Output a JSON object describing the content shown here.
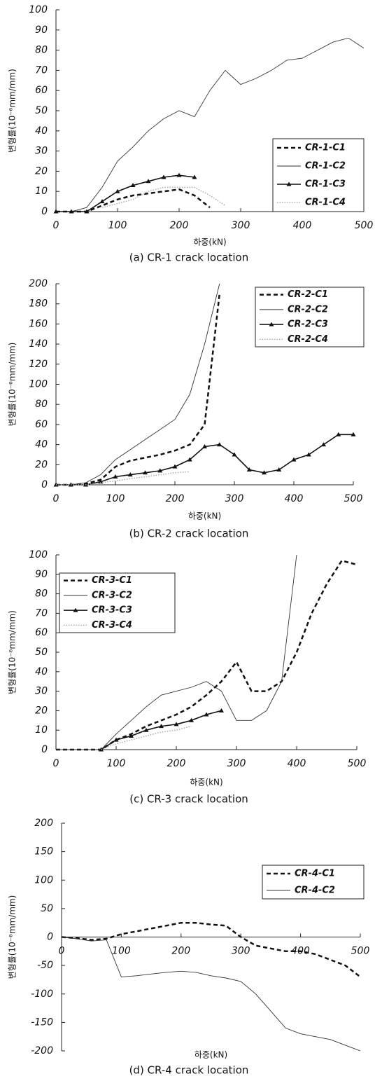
{
  "chart_data": [
    {
      "type": "line",
      "caption": "(a) CR-1 crack location",
      "xlabel": "하중(kN)",
      "ylabel": "변형률(10⁻⁶mm/mm)",
      "x": [
        0,
        25,
        50,
        75,
        100,
        125,
        150,
        175,
        200,
        225,
        250,
        275,
        300,
        325,
        350,
        375,
        400,
        425,
        450,
        475,
        500
      ],
      "xlim": [
        0,
        500
      ],
      "xticks": [
        0,
        100,
        200,
        300,
        400,
        500
      ],
      "ylim": [
        0,
        100
      ],
      "yticks": [
        0,
        10,
        20,
        30,
        40,
        50,
        60,
        70,
        80,
        90,
        100
      ],
      "legend": "lower right",
      "series": [
        {
          "name": "CR-1-C1",
          "color": "#111111",
          "style": "dashed",
          "values": [
            0,
            0,
            0,
            3,
            6,
            8,
            9,
            10,
            11,
            8,
            2,
            null,
            null,
            null,
            null,
            null,
            null,
            null,
            null,
            null,
            null
          ]
        },
        {
          "name": "CR-1-C2",
          "color": "#333333",
          "style": "thin",
          "values": [
            0,
            0,
            2,
            12,
            25,
            32,
            40,
            46,
            50,
            47,
            60,
            70,
            63,
            66,
            70,
            75,
            76,
            80,
            84,
            86,
            81
          ]
        },
        {
          "name": "CR-1-C3",
          "color": "#111111",
          "style": "triangle",
          "values": [
            0,
            0,
            0,
            5,
            10,
            13,
            15,
            17,
            18,
            17,
            null,
            null,
            null,
            null,
            null,
            null,
            null,
            null,
            null,
            null,
            null
          ]
        },
        {
          "name": "CR-1-C4",
          "color": "#aaaaaa",
          "style": "dotted",
          "values": [
            null,
            null,
            null,
            2,
            4,
            6,
            10,
            12,
            12,
            12,
            8,
            3,
            null,
            null,
            null,
            null,
            null,
            null,
            null,
            null,
            null
          ]
        }
      ]
    },
    {
      "type": "line",
      "caption": "(b) CR-2 crack location",
      "xlabel": "하중(kN)",
      "ylabel": "변형률(10⁻⁶mm/mm)",
      "x": [
        0,
        25,
        50,
        75,
        100,
        125,
        150,
        175,
        200,
        225,
        250,
        275,
        300,
        325,
        350,
        375,
        400,
        425,
        450,
        475,
        500
      ],
      "xlim": [
        0,
        500
      ],
      "xticks": [
        0,
        100,
        200,
        300,
        400,
        500
      ],
      "ylim": [
        0,
        200
      ],
      "yticks": [
        0,
        20,
        40,
        60,
        80,
        100,
        120,
        140,
        160,
        180,
        200
      ],
      "legend": "upper right",
      "series": [
        {
          "name": "CR-2-C1",
          "color": "#111111",
          "style": "dashed",
          "values": [
            0,
            0,
            1,
            5,
            18,
            24,
            27,
            30,
            34,
            40,
            60,
            190,
            null,
            null,
            null,
            null,
            null,
            null,
            null,
            null,
            null
          ]
        },
        {
          "name": "CR-2-C2",
          "color": "#333333",
          "style": "thin",
          "values": [
            0,
            0,
            2,
            10,
            25,
            35,
            45,
            55,
            65,
            90,
            140,
            200,
            null,
            null,
            null,
            null,
            null,
            null,
            null,
            null,
            null
          ]
        },
        {
          "name": "CR-2-C3",
          "color": "#111111",
          "style": "triangle",
          "values": [
            0,
            0,
            0,
            3,
            8,
            10,
            12,
            14,
            18,
            25,
            38,
            40,
            30,
            15,
            12,
            15,
            25,
            30,
            40,
            50,
            50
          ]
        },
        {
          "name": "CR-2-C4",
          "color": "#aaaaaa",
          "style": "dotted",
          "values": [
            0,
            0,
            0,
            2,
            4,
            6,
            8,
            10,
            12,
            13,
            null,
            null,
            null,
            null,
            null,
            null,
            null,
            null,
            null,
            null,
            null
          ]
        }
      ]
    },
    {
      "type": "line",
      "caption": "(c) CR-3 crack location",
      "xlabel": "하중(kN)",
      "ylabel": "변형률(10⁻⁶mm/mm)",
      "x": [
        0,
        25,
        50,
        75,
        100,
        125,
        150,
        175,
        200,
        225,
        250,
        275,
        300,
        325,
        350,
        375,
        400,
        425,
        450,
        475,
        500
      ],
      "xlim": [
        0,
        500
      ],
      "xticks": [
        0,
        100,
        200,
        300,
        400,
        500
      ],
      "ylim": [
        0,
        100
      ],
      "yticks": [
        0,
        10,
        20,
        30,
        40,
        50,
        60,
        70,
        80,
        90,
        100
      ],
      "legend": "upper left",
      "series": [
        {
          "name": "CR-3-C1",
          "color": "#111111",
          "style": "dashed",
          "values": [
            0,
            0,
            0,
            0,
            5,
            8,
            12,
            15,
            18,
            22,
            28,
            35,
            45,
            30,
            30,
            35,
            50,
            70,
            85,
            97,
            95
          ]
        },
        {
          "name": "CR-3-C2",
          "color": "#333333",
          "style": "thin",
          "values": [
            0,
            0,
            0,
            0,
            8,
            15,
            22,
            28,
            30,
            32,
            35,
            30,
            15,
            15,
            20,
            35,
            100,
            null,
            null,
            null,
            null
          ]
        },
        {
          "name": "CR-3-C3",
          "color": "#111111",
          "style": "triangle",
          "values": [
            null,
            null,
            null,
            0,
            5,
            7,
            10,
            12,
            13,
            15,
            18,
            20,
            null,
            null,
            null,
            null,
            null,
            null,
            null,
            null,
            null
          ]
        },
        {
          "name": "CR-3-C4",
          "color": "#aaaaaa",
          "style": "dotted",
          "values": [
            null,
            null,
            null,
            0,
            3,
            5,
            7,
            9,
            10,
            12,
            null,
            null,
            null,
            null,
            null,
            null,
            null,
            null,
            null,
            null,
            null
          ]
        }
      ]
    },
    {
      "type": "line",
      "caption": "(d) CR-4 crack location",
      "xlabel": "하중(kN)",
      "ylabel": "변형률(10⁻⁶mm/mm)",
      "x": [
        0,
        25,
        50,
        75,
        100,
        125,
        150,
        175,
        200,
        225,
        250,
        275,
        300,
        325,
        350,
        375,
        400,
        425,
        450,
        475,
        500
      ],
      "xlim": [
        0,
        500
      ],
      "xticks": [
        0,
        100,
        200,
        300,
        400,
        500
      ],
      "ylim": [
        -200,
        200
      ],
      "yticks": [
        -200,
        -150,
        -100,
        -50,
        0,
        50,
        100,
        150,
        200
      ],
      "legend": "upper right",
      "series": [
        {
          "name": "CR-4-C1",
          "color": "#111111",
          "style": "dashed",
          "values": [
            0,
            -2,
            -5,
            -3,
            5,
            10,
            15,
            20,
            25,
            25,
            22,
            20,
            0,
            -15,
            -20,
            -25,
            -25,
            -30,
            -40,
            -50,
            -70
          ]
        },
        {
          "name": "CR-4-C2",
          "color": "#333333",
          "style": "thin",
          "values": [
            0,
            -3,
            -7,
            -5,
            -70,
            -68,
            -65,
            -62,
            -60,
            -62,
            -68,
            -72,
            -78,
            -100,
            -130,
            -160,
            -170,
            -175,
            -180,
            -190,
            -200
          ]
        }
      ]
    }
  ]
}
